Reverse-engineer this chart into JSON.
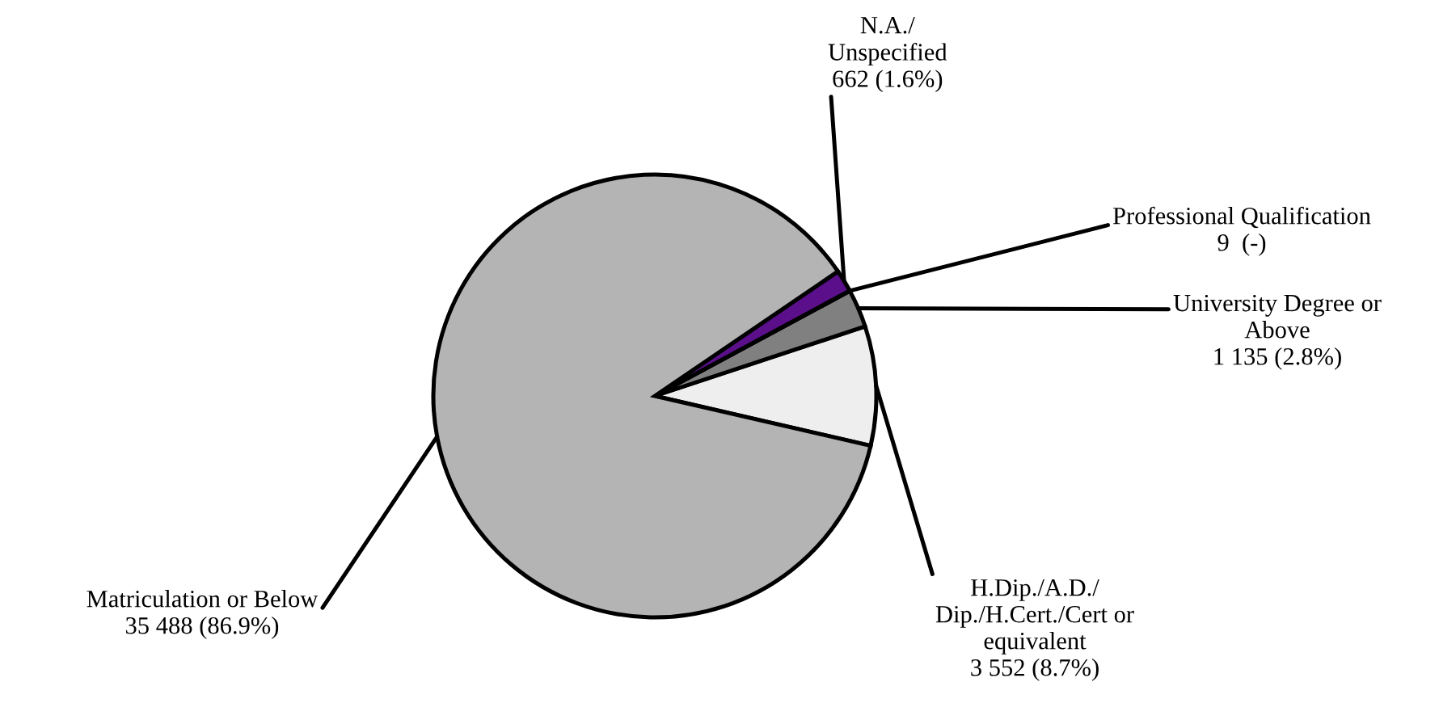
{
  "chart_data": {
    "type": "pie",
    "categories": [
      "H.Dip./A.D./\nDip./H.Cert./Cert or\nequivalent",
      "University Degree or\nAbove",
      "Professional Qualification",
      "N.A./\nUnspecified",
      "Matriculation or Below"
    ],
    "values": [
      3552,
      1135,
      9,
      662,
      35488
    ],
    "value_labels": [
      "3 552 (8.7%)",
      "1 135 (2.8%)",
      "9  (-)",
      "662 (1.6%)",
      "35 488 (86.9%)"
    ],
    "colors": [
      "#eeeeee",
      "#808080",
      "#ffffff",
      "#5b0f8a",
      "#b4b4b4"
    ]
  }
}
